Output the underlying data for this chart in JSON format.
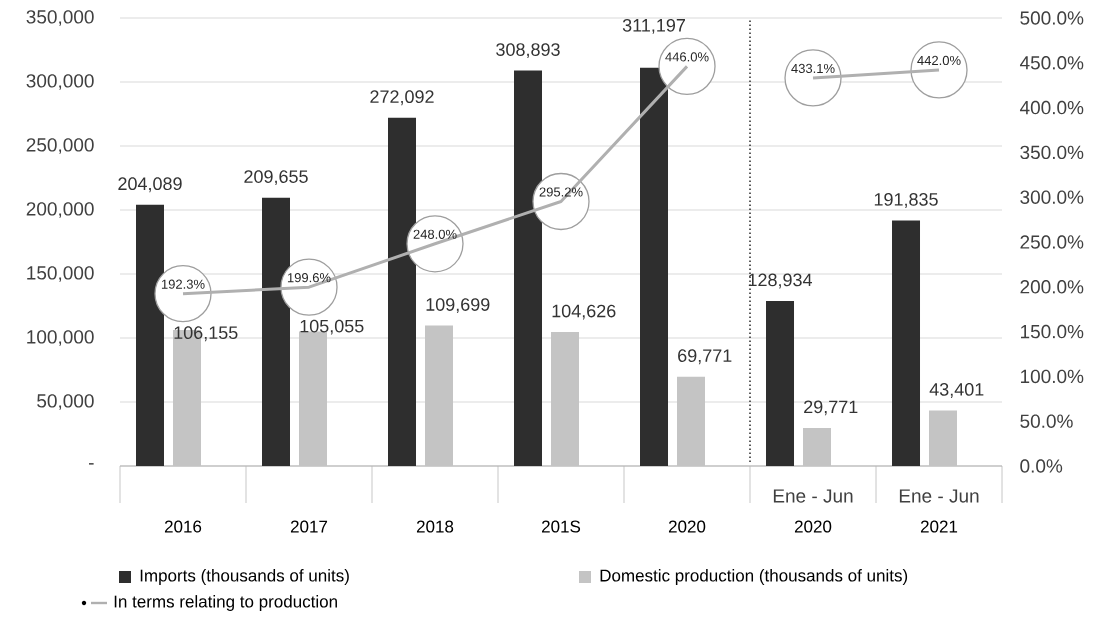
{
  "chart_data": {
    "type": "bar",
    "categories": [
      "2016",
      "2017",
      "2018",
      "201S",
      "2020",
      "2020",
      "2021"
    ],
    "series": [
      {
        "name": "Imports (thousands of units)",
        "color": "#2e2e2e",
        "values": [
          204089,
          209655,
          272092,
          308893,
          311197,
          128934,
          191835
        ],
        "value_labels": [
          "204,089",
          "209,655",
          "272,092",
          "308,893",
          "311,197",
          "128,934",
          "191,835"
        ]
      },
      {
        "name": "Domestic production (thousands of units)",
        "color": "#c4c4c4",
        "values": [
          106155,
          105055,
          109699,
          104626,
          69771,
          29771,
          43401
        ],
        "value_labels": [
          "106,155",
          "105,055",
          "109,699",
          "104,626",
          "69,771",
          "29,771",
          "43,401"
        ]
      },
      {
        "name": "In terms relating to production",
        "type": "line",
        "axis": "y2",
        "color": "#b0b0b0",
        "values": [
          192.3,
          199.6,
          248.0,
          295.2,
          446.0,
          null,
          null
        ],
        "value_labels": [
          "192.3%",
          "199.6%",
          "248.0%",
          "295.2%",
          "446.0%",
          null,
          null
        ]
      },
      {
        "type": "line",
        "axis": "y2",
        "color": "#b0b0b0",
        "values": [
          null,
          null,
          null,
          null,
          null,
          433.1,
          442.0
        ],
        "value_labels": [
          null,
          null,
          null,
          null,
          null,
          "433.1%",
          "442.0%"
        ]
      }
    ],
    "ylim": [
      0,
      350000
    ],
    "yticks": [
      {
        "value": 0,
        "label": "-"
      },
      {
        "value": 50000,
        "label": "50,000"
      },
      {
        "value": 100000,
        "label": "100,000"
      },
      {
        "value": 150000,
        "label": "150,000"
      },
      {
        "value": 200000,
        "label": "200,000"
      },
      {
        "value": 250000,
        "label": "250,000"
      },
      {
        "value": 300000,
        "label": "300,000"
      },
      {
        "value": 350000,
        "label": "350,000"
      }
    ],
    "y2lim": [
      0,
      500
    ],
    "y2ticks": [
      {
        "value": 0,
        "label": "0.0%"
      },
      {
        "value": 50,
        "label": "50.0%"
      },
      {
        "value": 100,
        "label": "100.0%"
      },
      {
        "value": 150,
        "label": "150.0%"
      },
      {
        "value": 200,
        "label": "200.0%"
      },
      {
        "value": 250,
        "label": "250.0%"
      },
      {
        "value": 300,
        "label": "300.0%"
      },
      {
        "value": 350,
        "label": "350.0%"
      },
      {
        "value": 400,
        "label": "400.0%"
      },
      {
        "value": 450,
        "label": "450.0%"
      },
      {
        "value": 500,
        "label": "500.0%"
      }
    ],
    "annotations": [
      "Ene - Jun",
      "Ene - Jun"
    ],
    "grid": "y",
    "legend": "bottom",
    "line_style": "solid"
  }
}
